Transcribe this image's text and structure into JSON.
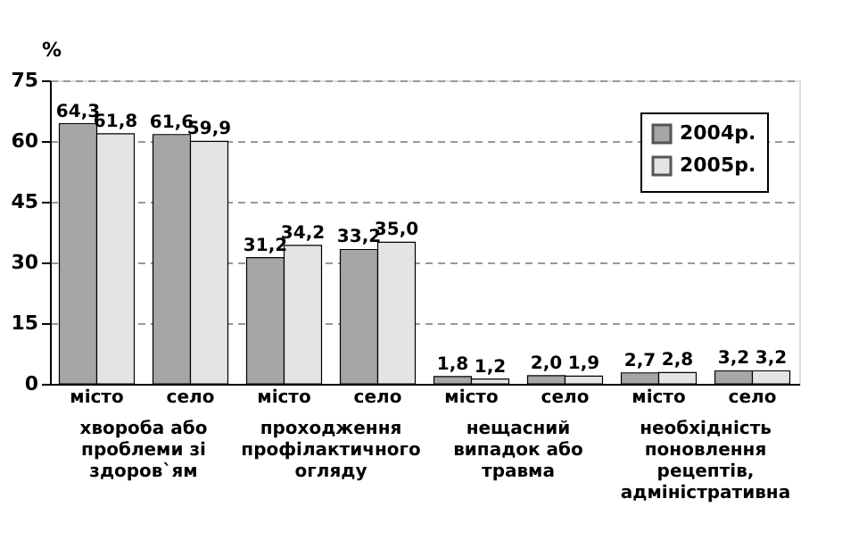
{
  "chart_data": {
    "type": "bar",
    "ylabel": "%",
    "categories": [
      "місто",
      "село",
      "місто",
      "село",
      "місто",
      "село",
      "місто",
      "село"
    ],
    "series": [
      {
        "name": "2004р.",
        "color": "#a6a6a6",
        "values": [
          64.3,
          61.6,
          31.2,
          33.2,
          1.8,
          2.0,
          2.7,
          3.2
        ],
        "value_labels": [
          "64,3",
          "61,6",
          "31,2",
          "33,2",
          "1,8",
          "2,0",
          "2,7",
          "3,2"
        ]
      },
      {
        "name": "2005р.",
        "color": "#e4e4e4",
        "values": [
          61.8,
          59.9,
          34.2,
          35.0,
          1.2,
          1.9,
          2.8,
          3.2
        ],
        "value_labels": [
          "61,8",
          "59,9",
          "34,2",
          "35,0",
          "1,2",
          "1,9",
          "2,8",
          "3,2"
        ]
      }
    ],
    "annotations": [
      "хвороба або проблеми зі здоров`ям",
      "проходження профілактичного огляду",
      "нещасний випадок або травма",
      "необхідність поновлення рецептів, адміністративна"
    ],
    "ylim": [
      0,
      75
    ],
    "yticks": [
      0,
      15,
      30,
      45,
      60,
      75
    ],
    "grid": "y",
    "legend": "top right"
  }
}
